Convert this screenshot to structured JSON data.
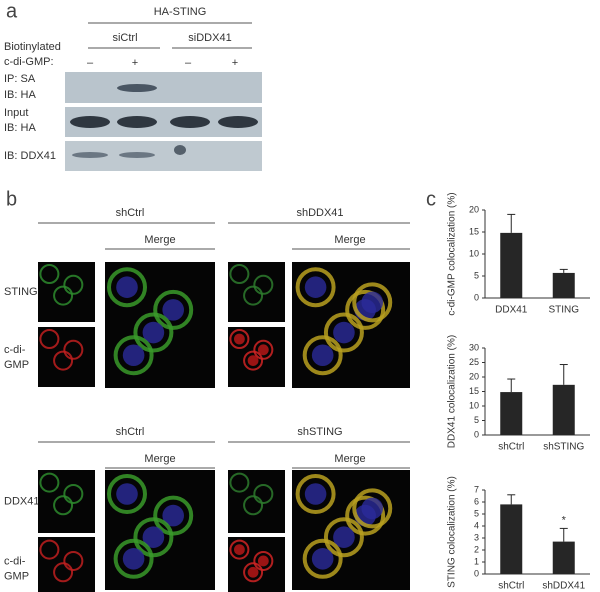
{
  "panel_a": {
    "label": "a",
    "construct": "HA-STING",
    "groups": [
      "siCtrl",
      "siDDX41"
    ],
    "row_headers": [
      "Biotinylated",
      "c-di-GMP:"
    ],
    "lanes": [
      "–",
      "+",
      "–",
      "+"
    ],
    "blots": [
      [
        "IP: SA",
        "IB: HA"
      ],
      [
        "Input",
        "IB: HA"
      ],
      [
        "IB: DDX41"
      ]
    ]
  },
  "panel_b": {
    "label": "b",
    "blocks": [
      {
        "groups": [
          "shCtrl",
          "shDDX41"
        ],
        "merge": [
          "Merge",
          "Merge"
        ],
        "rows": [
          [
            "STING"
          ],
          [
            "c-di-",
            "GMP"
          ]
        ]
      },
      {
        "groups": [
          "shCtrl",
          "shSTING"
        ],
        "merge": [
          "Merge",
          "Merge"
        ],
        "rows": [
          [
            "DDX41"
          ],
          [
            "c-di-",
            "GMP"
          ]
        ]
      }
    ]
  },
  "panel_c": {
    "label": "c"
  },
  "chart_data": [
    {
      "type": "bar",
      "y_label": "c-di-GMP colocalization (%)",
      "categories": [
        "DDX41",
        "STING"
      ],
      "values": [
        14.8,
        5.7
      ],
      "errors": [
        4.2,
        0.8
      ],
      "color": "#262626",
      "ylim": [
        0,
        20
      ],
      "yticks": [
        0,
        5,
        10,
        15,
        20
      ]
    },
    {
      "type": "bar",
      "y_label": "DDX41 colocalization (%)",
      "categories": [
        "shCtrl",
        "shSTING"
      ],
      "values": [
        14.8,
        17.3
      ],
      "errors": [
        4.5,
        7
      ],
      "color": "#262626",
      "ylim": [
        0,
        30
      ],
      "yticks": [
        0,
        5,
        10,
        15,
        20,
        25,
        30
      ]
    },
    {
      "type": "bar",
      "y_label": "STING colocalization (%)",
      "categories": [
        "shCtrl",
        "shDDX41"
      ],
      "values": [
        5.8,
        2.7
      ],
      "errors": [
        0.8,
        1.1
      ],
      "color": "#262626",
      "ylim": [
        0,
        7
      ],
      "yticks": [
        0,
        1,
        2,
        3,
        4,
        5,
        6,
        7
      ],
      "annotation": "*"
    }
  ]
}
